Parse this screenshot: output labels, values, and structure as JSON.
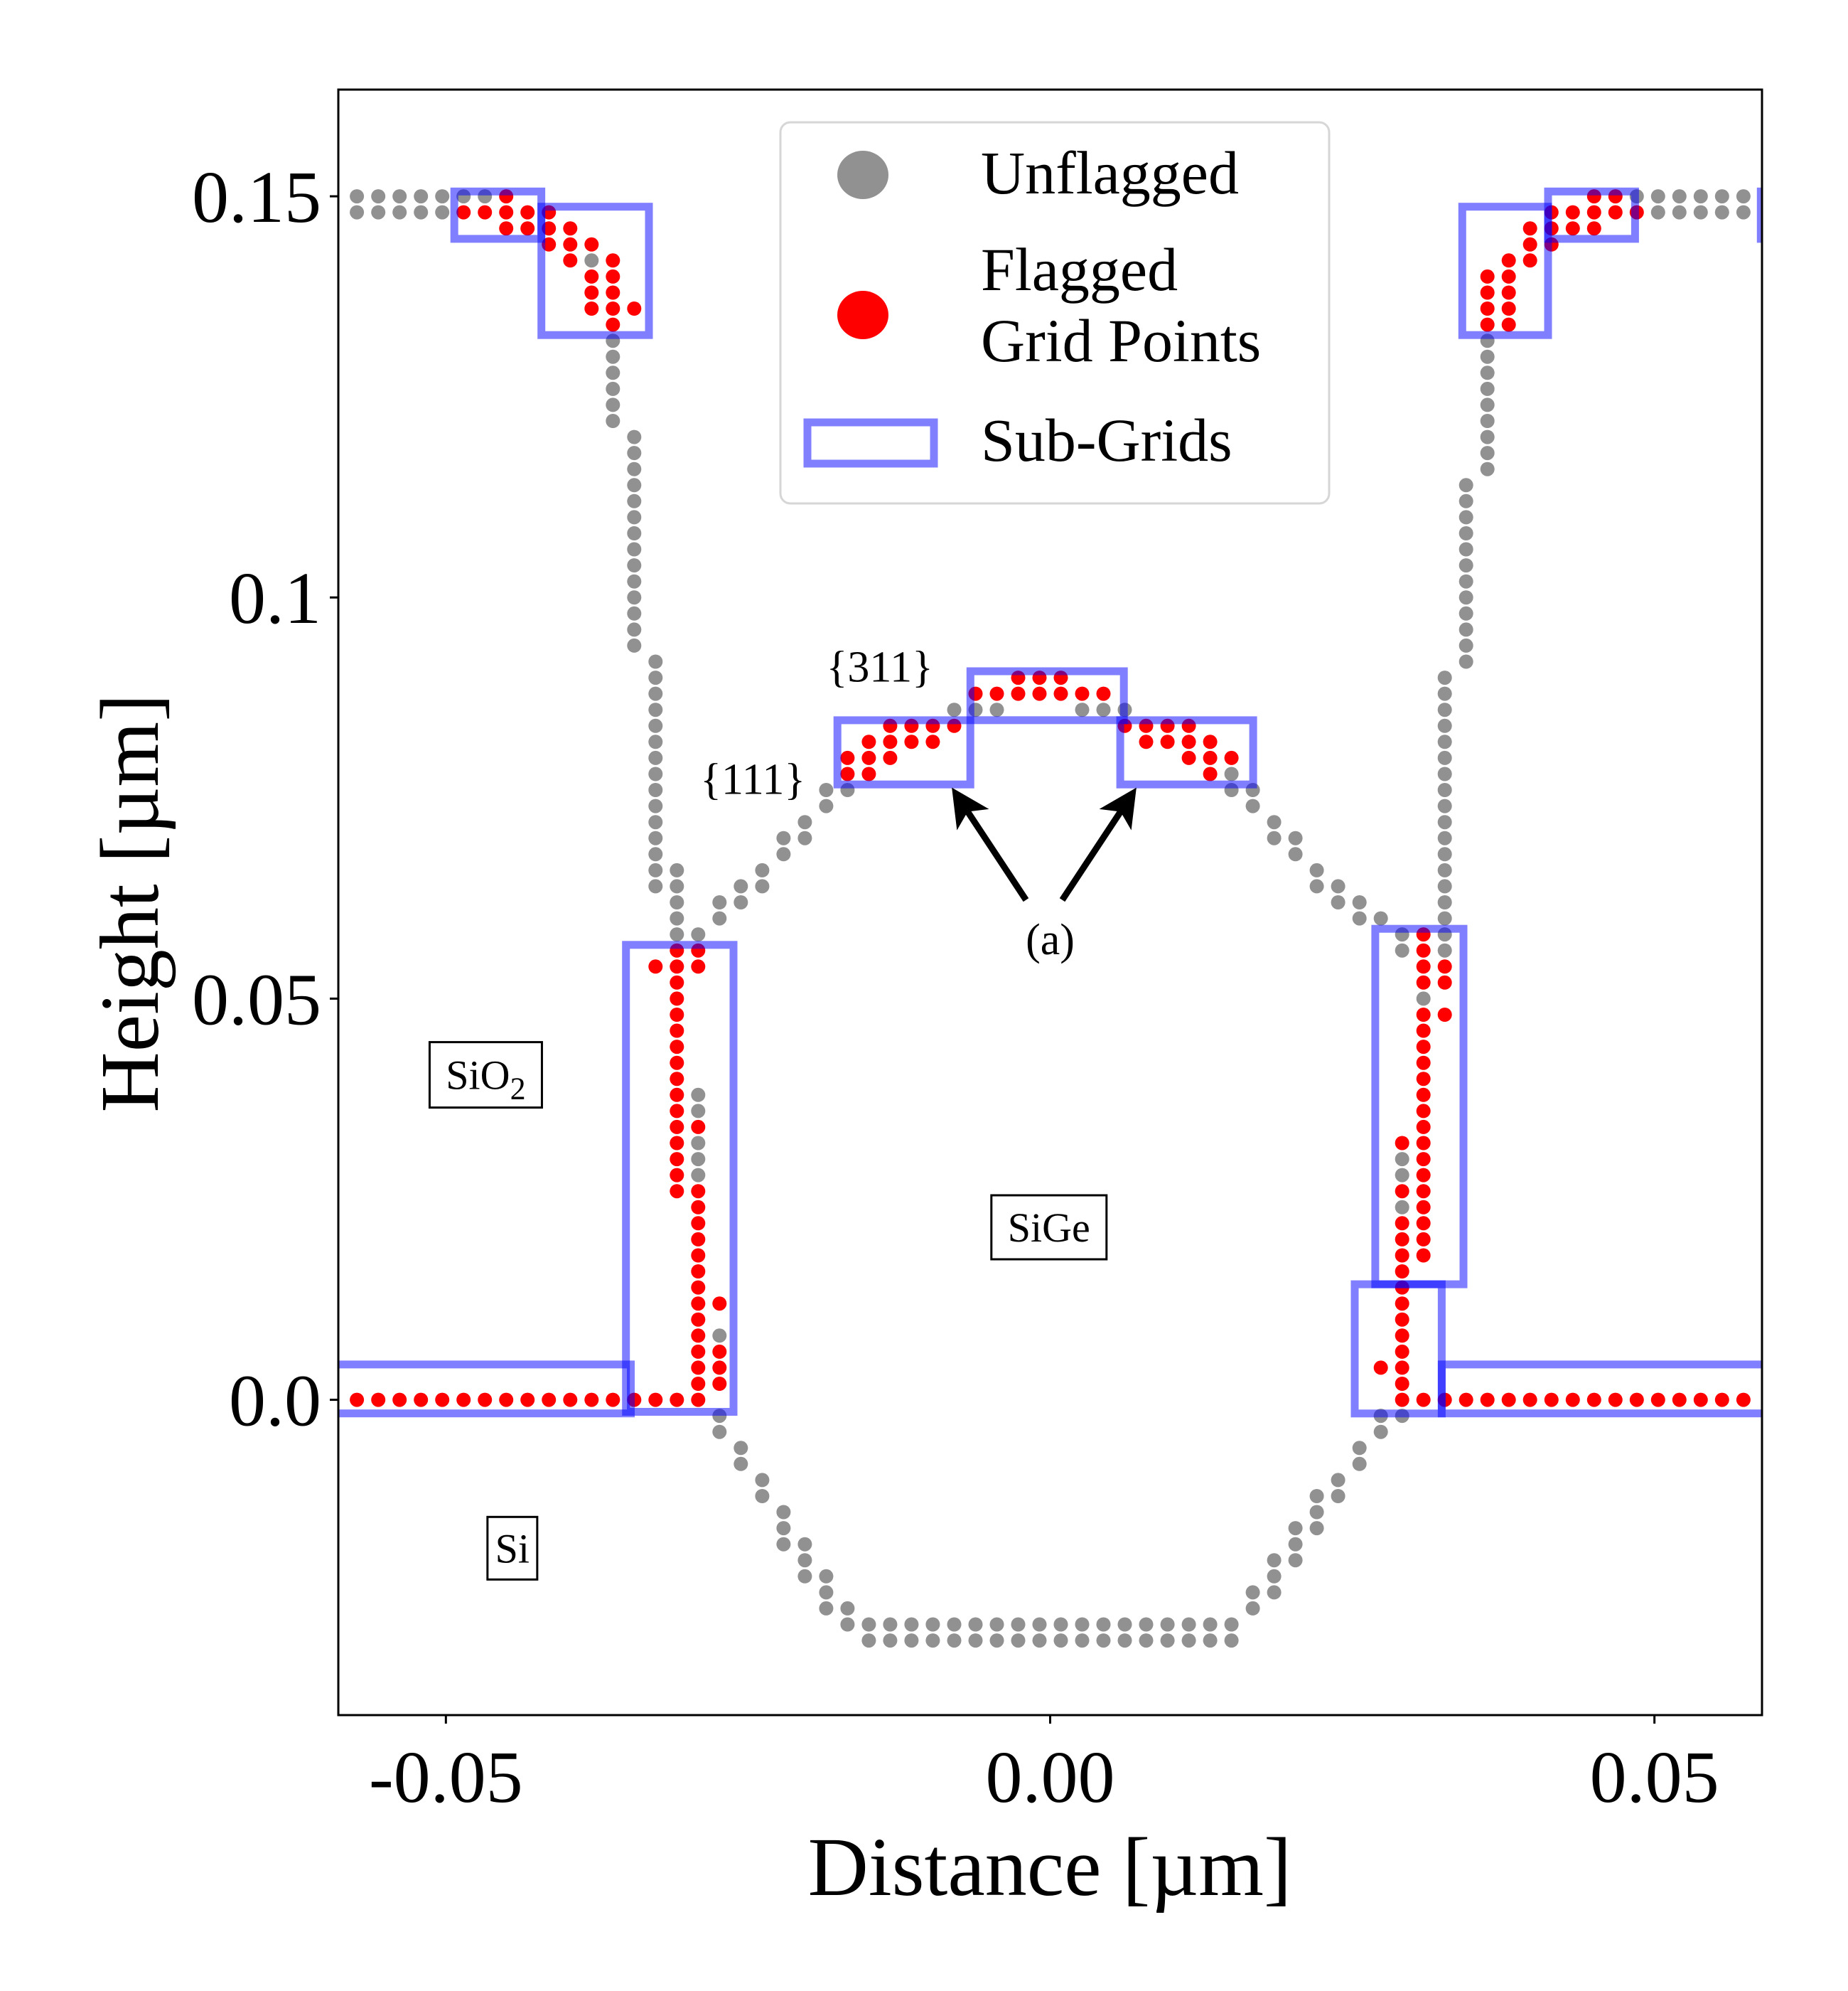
{
  "chart_data": {
    "type": "scatter",
    "title": "",
    "xlabel": "Distance [µm]",
    "ylabel": "Height [µm]",
    "xlim": [
      -0.0589,
      0.0589
    ],
    "ylim": [
      -0.0393,
      0.1633
    ],
    "xticks": [
      {
        "value": -0.05,
        "label": "-0.05"
      },
      {
        "value": 0.0,
        "label": "0.00"
      },
      {
        "value": 0.05,
        "label": "0.05"
      }
    ],
    "yticks": [
      {
        "value": 0.0,
        "label": "0.0"
      },
      {
        "value": 0.05,
        "label": "0.05"
      },
      {
        "value": 0.1,
        "label": "0.1"
      },
      {
        "value": 0.15,
        "label": "0.15"
      }
    ],
    "grid": false,
    "legend": {
      "placement": "top-center",
      "entries": [
        {
          "key": "unflagged",
          "label_lines": [
            "Unflagged"
          ],
          "marker": "circle",
          "color": "#919191"
        },
        {
          "key": "flagged",
          "label_lines": [
            "Flagged",
            "Grid Points"
          ],
          "marker": "circle",
          "color": "#ff0000"
        },
        {
          "key": "subgrids",
          "label_lines": [
            "Sub-Grids"
          ],
          "marker": "rectangle-outline",
          "color": "#8080ff"
        }
      ]
    },
    "point_grid": {
      "note": "points given as vertical runs [column_index, row_from, row_to]; x = (column_index + 0.5) * dx, y = row * dy (µm)",
      "dx_um": 0.001765,
      "dy_um": 0.002
    },
    "series": [
      {
        "name": "Unflagged",
        "color": "#919191",
        "runs": [
          [
            -33,
            74,
            75
          ],
          [
            -32,
            74,
            75
          ],
          [
            -31,
            74,
            75
          ],
          [
            -30,
            74,
            75
          ],
          [
            -29,
            74,
            75
          ],
          [
            -28,
            75,
            75
          ],
          [
            -27,
            75,
            75
          ],
          [
            -22,
            71,
            71
          ],
          [
            -21,
            61,
            66
          ],
          [
            -20,
            47,
            60
          ],
          [
            -19,
            32,
            46
          ],
          [
            -18,
            29,
            33
          ],
          [
            -17,
            29,
            29
          ],
          [
            -16,
            30,
            31
          ],
          [
            -15,
            31,
            32
          ],
          [
            -14,
            32,
            33
          ],
          [
            -13,
            34,
            35
          ],
          [
            -12,
            35,
            36
          ],
          [
            -11,
            37,
            38
          ],
          [
            -10,
            38,
            38
          ],
          [
            -5,
            43,
            43
          ],
          [
            -4,
            43,
            43
          ],
          [
            -3,
            43,
            43
          ],
          [
            1,
            43,
            43
          ],
          [
            2,
            43,
            43
          ],
          [
            3,
            43,
            43
          ],
          [
            8,
            38,
            39
          ],
          [
            9,
            37,
            38
          ],
          [
            10,
            35,
            36
          ],
          [
            11,
            34,
            35
          ],
          [
            12,
            32,
            33
          ],
          [
            13,
            31,
            32
          ],
          [
            14,
            30,
            31
          ],
          [
            15,
            30,
            30
          ],
          [
            -17,
            18,
            19
          ],
          [
            -17,
            14,
            16
          ],
          [
            -16,
            4,
            4
          ],
          [
            -16,
            -2,
            -1
          ],
          [
            -15,
            -4,
            -3
          ],
          [
            -14,
            -6,
            -5
          ],
          [
            -13,
            -9,
            -7
          ],
          [
            -12,
            -11,
            -9
          ],
          [
            -11,
            -13,
            -11
          ],
          [
            -10,
            -14,
            -13
          ],
          [
            -9,
            -15,
            -14
          ],
          [
            -8,
            -15,
            -14
          ],
          [
            -7,
            -15,
            -14
          ],
          [
            -6,
            -15,
            -14
          ],
          [
            -5,
            -15,
            -14
          ],
          [
            -4,
            -15,
            -14
          ],
          [
            -3,
            -15,
            -14
          ],
          [
            -2,
            -15,
            -14
          ],
          [
            -1,
            -15,
            -14
          ],
          [
            0,
            -15,
            -14
          ],
          [
            1,
            -15,
            -14
          ],
          [
            2,
            -15,
            -14
          ],
          [
            3,
            -15,
            -14
          ],
          [
            4,
            -15,
            -14
          ],
          [
            5,
            -15,
            -14
          ],
          [
            6,
            -15,
            -14
          ],
          [
            7,
            -15,
            -14
          ],
          [
            8,
            -15,
            -14
          ],
          [
            9,
            -13,
            -12
          ],
          [
            10,
            -12,
            -10
          ],
          [
            11,
            -10,
            -8
          ],
          [
            12,
            -8,
            -6
          ],
          [
            13,
            -6,
            -5
          ],
          [
            14,
            -4,
            -3
          ],
          [
            15,
            -2,
            -1
          ],
          [
            16,
            -1,
            -1
          ],
          [
            16,
            28,
            29
          ],
          [
            16,
            14,
            15
          ],
          [
            16,
            12,
            12
          ],
          [
            17,
            25,
            25
          ],
          [
            18,
            28,
            45
          ],
          [
            19,
            46,
            57
          ],
          [
            20,
            58,
            66
          ],
          [
            27,
            75,
            75
          ],
          [
            28,
            74,
            75
          ],
          [
            29,
            74,
            75
          ],
          [
            30,
            74,
            75
          ],
          [
            31,
            74,
            75
          ],
          [
            32,
            74,
            75
          ]
        ]
      },
      {
        "name": "Flagged Grid Points",
        "color": "#ff0000",
        "runs": [
          [
            -28,
            74,
            74
          ],
          [
            -27,
            74,
            74
          ],
          [
            -26,
            73,
            75
          ],
          [
            -25,
            73,
            74
          ],
          [
            -24,
            72,
            74
          ],
          [
            -23,
            71,
            73
          ],
          [
            -22,
            72,
            72
          ],
          [
            -22,
            68,
            70
          ],
          [
            -21,
            67,
            71
          ],
          [
            -20,
            68,
            68
          ],
          [
            -10,
            39,
            40
          ],
          [
            -9,
            39,
            41
          ],
          [
            -8,
            40,
            42
          ],
          [
            -7,
            41,
            42
          ],
          [
            -6,
            41,
            42
          ],
          [
            -5,
            42,
            42
          ],
          [
            -4,
            44,
            44
          ],
          [
            -3,
            44,
            44
          ],
          [
            -2,
            44,
            45
          ],
          [
            -1,
            44,
            45
          ],
          [
            0,
            44,
            45
          ],
          [
            1,
            44,
            44
          ],
          [
            2,
            44,
            44
          ],
          [
            3,
            42,
            42
          ],
          [
            4,
            41,
            42
          ],
          [
            5,
            41,
            42
          ],
          [
            6,
            40,
            42
          ],
          [
            7,
            39,
            41
          ],
          [
            8,
            40,
            40
          ],
          [
            -19,
            27,
            27
          ],
          [
            -18,
            13,
            28
          ],
          [
            -17,
            27,
            28
          ],
          [
            -17,
            17,
            17
          ],
          [
            -17,
            0,
            13
          ],
          [
            -16,
            6,
            6
          ],
          [
            -16,
            1,
            3
          ],
          [
            -33,
            0,
            0
          ],
          [
            -32,
            0,
            0
          ],
          [
            -31,
            0,
            0
          ],
          [
            -30,
            0,
            0
          ],
          [
            -29,
            0,
            0
          ],
          [
            -28,
            0,
            0
          ],
          [
            -27,
            0,
            0
          ],
          [
            -26,
            0,
            0
          ],
          [
            -25,
            0,
            0
          ],
          [
            -24,
            0,
            0
          ],
          [
            -23,
            0,
            0
          ],
          [
            -22,
            0,
            0
          ],
          [
            -21,
            0,
            0
          ],
          [
            -20,
            0,
            0
          ],
          [
            -19,
            0,
            0
          ],
          [
            -18,
            0,
            0
          ],
          [
            16,
            16,
            16
          ],
          [
            16,
            13,
            13
          ],
          [
            16,
            0,
            11
          ],
          [
            17,
            26,
            29
          ],
          [
            17,
            9,
            24
          ],
          [
            18,
            26,
            27
          ],
          [
            18,
            24,
            24
          ],
          [
            15,
            2,
            2
          ],
          [
            17,
            0,
            0
          ],
          [
            18,
            0,
            0
          ],
          [
            19,
            0,
            0
          ],
          [
            20,
            0,
            0
          ],
          [
            21,
            0,
            0
          ],
          [
            22,
            0,
            0
          ],
          [
            23,
            0,
            0
          ],
          [
            24,
            0,
            0
          ],
          [
            25,
            0,
            0
          ],
          [
            26,
            0,
            0
          ],
          [
            27,
            0,
            0
          ],
          [
            28,
            0,
            0
          ],
          [
            29,
            0,
            0
          ],
          [
            30,
            0,
            0
          ],
          [
            31,
            0,
            0
          ],
          [
            32,
            0,
            0
          ],
          [
            20,
            67,
            70
          ],
          [
            21,
            67,
            71
          ],
          [
            22,
            71,
            73
          ],
          [
            23,
            72,
            74
          ],
          [
            24,
            73,
            74
          ],
          [
            25,
            73,
            75
          ],
          [
            26,
            74,
            75
          ],
          [
            27,
            74,
            74
          ]
        ]
      }
    ],
    "subgrids": [
      {
        "x": [
          -0.0493,
          -0.0421
        ],
        "y": [
          0.1447,
          0.1506
        ]
      },
      {
        "x": [
          -0.0421,
          -0.0332
        ],
        "y": [
          0.1327,
          0.1487
        ]
      },
      {
        "x": [
          -0.06,
          -0.0347
        ],
        "y": [
          -0.0017,
          0.0044
        ]
      },
      {
        "x": [
          -0.0351,
          -0.0262
        ],
        "y": [
          -0.0015,
          0.0567
        ]
      },
      {
        "x": [
          -0.0176,
          -0.0066
        ],
        "y": [
          0.0767,
          0.0847
        ]
      },
      {
        "x": [
          -0.0066,
          0.0061
        ],
        "y": [
          0.0847,
          0.0908
        ]
      },
      {
        "x": [
          0.0058,
          0.0168
        ],
        "y": [
          0.0767,
          0.0847
        ]
      },
      {
        "x": [
          0.0269,
          0.0342
        ],
        "y": [
          0.0144,
          0.0587
        ]
      },
      {
        "x": [
          0.0252,
          0.0324
        ],
        "y": [
          -0.0017,
          0.0144
        ]
      },
      {
        "x": [
          0.0324,
          0.062
        ],
        "y": [
          -0.0017,
          0.0044
        ]
      },
      {
        "x": [
          0.0341,
          0.0412
        ],
        "y": [
          0.1327,
          0.1487
        ]
      },
      {
        "x": [
          0.0412,
          0.0484
        ],
        "y": [
          0.1447,
          0.1506
        ]
      },
      {
        "x": [
          0.0588,
          0.065
        ],
        "y": [
          0.1447,
          0.1506
        ]
      }
    ],
    "annotations": [
      {
        "key": "facet311",
        "text": "{311}",
        "x": -0.0141,
        "y": 0.0913
      },
      {
        "key": "facet111",
        "text": "{111}",
        "x": -0.0246,
        "y": 0.0773
      },
      {
        "key": "label_a",
        "text": "(a)",
        "x": 0.0,
        "y": 0.0573
      },
      {
        "key": "sio2",
        "text": "SiO",
        "subscript": "2",
        "x": -0.0467,
        "y": 0.0405,
        "boxed": true
      },
      {
        "key": "sige",
        "text": "SiGe",
        "x": -0.0001,
        "y": 0.0215,
        "boxed": true
      },
      {
        "key": "si",
        "text": "Si",
        "x": -0.0445,
        "y": -0.0185,
        "boxed": true
      }
    ],
    "arrows": [
      {
        "from": [
          -0.002,
          0.0623
        ],
        "to": [
          -0.0077,
          0.0753
        ]
      },
      {
        "from": [
          0.001,
          0.0623
        ],
        "to": [
          0.0067,
          0.0753
        ]
      }
    ]
  }
}
